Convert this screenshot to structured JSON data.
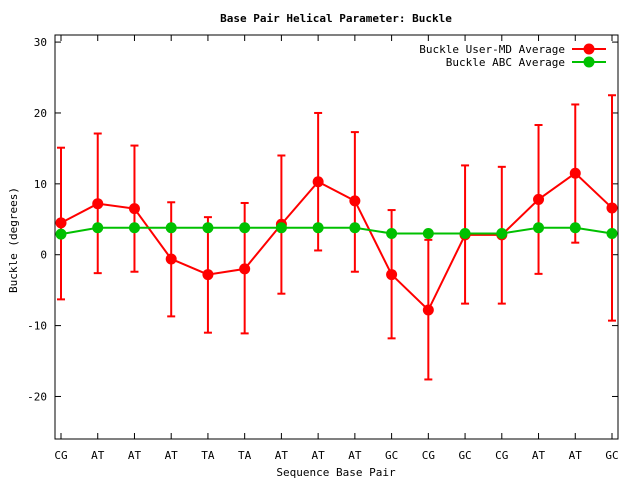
{
  "chart_data": {
    "type": "line",
    "title": "Base Pair Helical Parameter: Buckle",
    "xlabel": "Sequence Base Pair",
    "ylabel": "Buckle (degrees)",
    "categories": [
      "CG",
      "AT",
      "AT",
      "AT",
      "TA",
      "TA",
      "AT",
      "AT",
      "AT",
      "GC",
      "CG",
      "GC",
      "CG",
      "AT",
      "AT",
      "GC"
    ],
    "ylim": [
      -26,
      31
    ],
    "yticks": [
      30,
      20,
      10,
      0,
      -10,
      -20
    ],
    "grid": false,
    "legend_position": "top-right",
    "series": [
      {
        "name": "Buckle User-MD Average",
        "color": "#ff0000",
        "values": [
          4.5,
          7.2,
          6.5,
          -0.6,
          -2.8,
          -2.0,
          4.3,
          10.3,
          7.6,
          -2.8,
          -7.8,
          2.8,
          2.8,
          7.8,
          11.5,
          6.6
        ],
        "error_low": [
          -6.3,
          -2.6,
          -2.4,
          -8.7,
          -11.0,
          -11.1,
          -5.5,
          0.6,
          -2.4,
          -11.8,
          -17.6,
          -6.9,
          -6.9,
          -2.7,
          1.7,
          -9.3
        ],
        "error_high": [
          15.1,
          17.1,
          15.4,
          7.4,
          5.3,
          7.3,
          14.0,
          20.0,
          17.3,
          6.3,
          2.1,
          12.6,
          12.4,
          18.3,
          21.2,
          22.5
        ]
      },
      {
        "name": "Buckle ABC Average",
        "color": "#00c000",
        "values": [
          2.9,
          3.8,
          3.8,
          3.8,
          3.8,
          3.8,
          3.8,
          3.8,
          3.8,
          3.0,
          3.0,
          3.0,
          3.0,
          3.8,
          3.8,
          3.0
        ]
      }
    ]
  }
}
